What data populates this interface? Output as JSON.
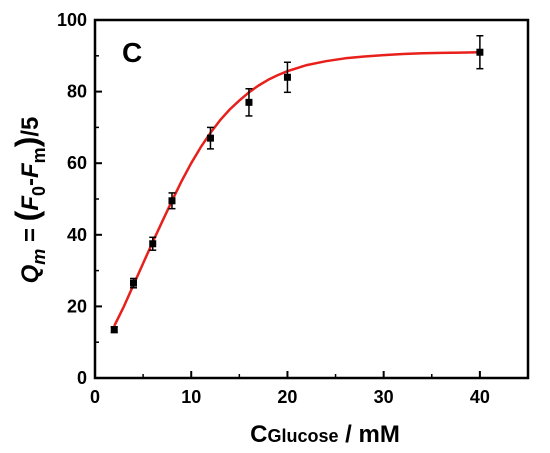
{
  "chart_data": {
    "type": "scatter",
    "panel_label": "C",
    "xlabel": {
      "main": "C",
      "sub": "Glucose",
      "unit": " / mM"
    },
    "ylabel": {
      "q": "Q",
      "q_sub": "m",
      "eq": " = ",
      "open": "(",
      "f0": "F",
      "f0_sub": "0",
      "dash": "-",
      "fm": "F",
      "fm_sub": "m",
      "close": ")",
      "div": "/5"
    },
    "xlim": [
      0,
      45
    ],
    "ylim": [
      0,
      100
    ],
    "x_ticks": [
      0,
      10,
      20,
      30,
      40
    ],
    "y_ticks": [
      0,
      20,
      40,
      60,
      80,
      100
    ],
    "grid": false,
    "fit_color": "#e8201c",
    "marker_color": "#000000",
    "series": [
      {
        "x": [
          2,
          4,
          6,
          8,
          12,
          16,
          20,
          40
        ],
        "y": [
          13.5,
          26.5,
          37.5,
          49.5,
          67,
          77,
          84,
          91
        ],
        "error": [
          0.8,
          1.3,
          1.8,
          2.2,
          3.0,
          3.8,
          4.2,
          4.6
        ]
      }
    ],
    "fit": {
      "x": [
        2,
        3,
        4,
        5,
        6,
        7,
        8,
        9,
        10,
        11,
        12,
        13,
        14,
        15,
        16,
        17,
        18,
        19,
        20,
        22,
        24,
        26,
        28,
        30,
        32,
        34,
        36,
        38,
        40
      ],
      "y": [
        14.5,
        20.0,
        26.0,
        32.0,
        38.0,
        43.8,
        49.5,
        55.0,
        60.0,
        64.5,
        68.5,
        72.0,
        75.0,
        77.5,
        79.8,
        81.7,
        83.3,
        84.6,
        85.7,
        87.4,
        88.5,
        89.3,
        89.8,
        90.2,
        90.5,
        90.7,
        90.8,
        90.9,
        91.0
      ]
    }
  }
}
